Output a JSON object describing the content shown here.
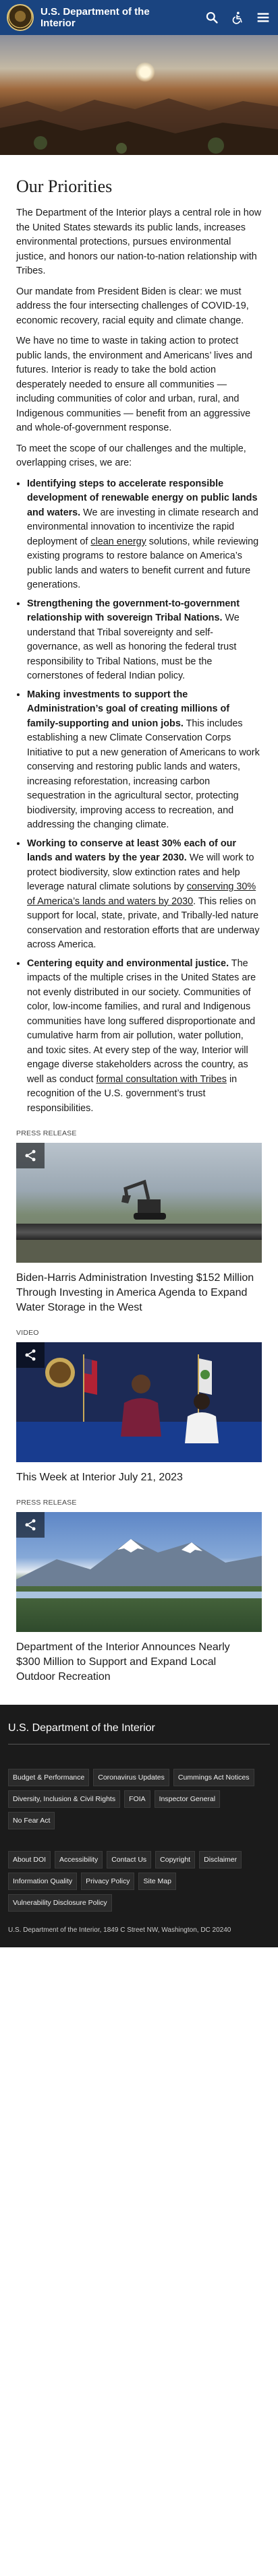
{
  "colors": {
    "brand": "#1a4480",
    "footer_bg": "#1b1b1b"
  },
  "header": {
    "title": "U.S. Department of the Interior",
    "icons": [
      "search-icon",
      "accessibility-icon",
      "menu-icon"
    ]
  },
  "main": {
    "title": "Our Priorities",
    "paragraphs": [
      "The Department of the Interior plays a central role in how the United States stewards its public lands, increases environmental protections, pursues environmental justice, and honors our nation-to-nation relationship with Tribes.",
      "Our mandate from President Biden is clear: we must address the four intersecting challenges of COVID-19, economic recovery, racial equity and climate change.",
      "We have no time to waste in taking action to protect public lands, the environment and Americans’ lives and futures. Interior is ready to take the bold action desperately needed to ensure all communities — including communities of color and urban, rural, and Indigenous communities — benefit from an aggressive and whole-of-government response.",
      "To meet the scope of our challenges and the multiple, overlapping crises, we are:"
    ],
    "priorities": [
      {
        "bold": "Identifying steps to accelerate responsible development of renewable energy on public lands and waters.",
        "text1": " We are investing in climate research and environmental innovation to incentivize the rapid deployment of ",
        "link": "clean energy",
        "text2": " solutions, while reviewing existing programs to restore balance on America’s public lands and waters to benefit current and future generations."
      },
      {
        "bold": "Strengthening the government-to-government relationship with sovereign Tribal Nations.",
        "text1": " We understand that Tribal sovereignty and self-governance, as well as honoring the federal trust responsibility to Tribal Nations, must be the cornerstones of federal Indian policy.",
        "link": "",
        "text2": ""
      },
      {
        "bold": "Making investments to support the Administration’s goal of creating millions of family-supporting and union jobs.",
        "text1": " This includes establishing a new Climate Conservation Corps Initiative to put a new generation of Americans to work conserving and restoring public lands and waters, increasing reforestation, increasing carbon sequestration in the agricultural sector, protecting biodiversity, improving access to recreation, and addressing the changing climate.",
        "link": "",
        "text2": ""
      },
      {
        "bold": "Working to conserve at least 30% each of our lands and waters by the year 2030.",
        "text1": " We will work to protect biodiversity, slow extinction rates and help leverage natural climate solutions by ",
        "link": "conserving 30% of America’s lands and waters by 2030",
        "text2": ". This relies on support for local, state, private, and Tribally-led nature conservation and restoration efforts that are underway across America."
      },
      {
        "bold": "Centering equity and environmental justice.",
        "text1": " The impacts of the multiple crises in the United States are not evenly distributed in our society. Communities of color, low-income families, and rural and Indigenous communities have long suffered disproportionate and cumulative harm from air pollution, water pollution, and toxic sites. At every step of the way, Interior will engage diverse stakeholders across the country, as well as conduct ",
        "link": "formal consultation with Tribes",
        "text2": " in recognition of the U.S. government’s trust responsibilities."
      }
    ]
  },
  "cards": [
    {
      "label": "PRESS RELEASE",
      "title": "Biden-Harris Administration Investing $152 Million Through Investing in America Agenda to Expand Water Storage in the West"
    },
    {
      "label": "VIDEO",
      "title": "This Week at Interior July 21, 2023"
    },
    {
      "label": "PRESS RELEASE",
      "title": "Department of the Interior Announces Nearly $300 Million to Support and Expand Local Outdoor Recreation"
    }
  ],
  "footer": {
    "title": "U.S. Department of the Interior",
    "links_primary": [
      "Budget & Performance",
      "Coronavirus Updates",
      "Cummings Act Notices",
      "Diversity, Inclusion & Civil Rights",
      "FOIA",
      "Inspector General",
      "No Fear Act"
    ],
    "links_secondary": [
      "About DOI",
      "Accessibility",
      "Contact Us",
      "Copyright",
      "Disclaimer",
      "Information Quality",
      "Privacy Policy",
      "Site Map",
      "Vulnerability Disclosure Policy"
    ],
    "address": "U.S. Department of the Interior, 1849 C Street NW, Washington, DC 20240"
  }
}
